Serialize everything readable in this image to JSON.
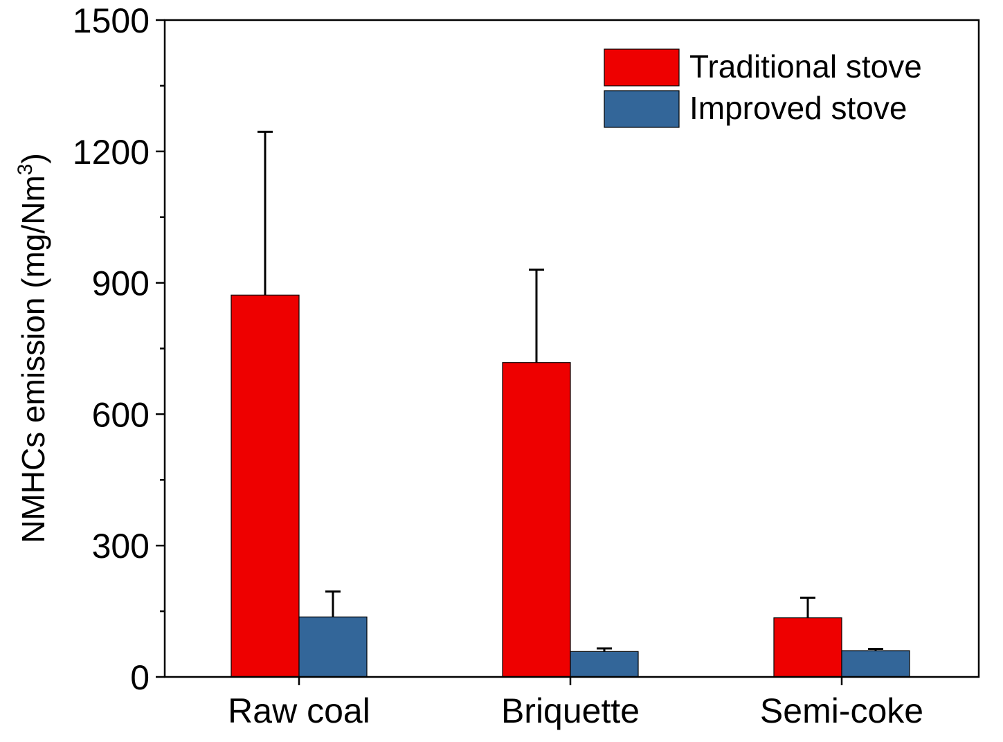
{
  "chart_data": {
    "type": "bar",
    "categories": [
      "Raw coal",
      "Briquette",
      "Semi-coke"
    ],
    "series": [
      {
        "name": "Traditional stove",
        "color": "#ee0000",
        "values": [
          872,
          718,
          135
        ],
        "errors": [
          373,
          212,
          46
        ]
      },
      {
        "name": "Improved stove",
        "color": "#336699",
        "values": [
          137,
          58,
          60
        ],
        "errors": [
          58,
          7,
          4
        ]
      }
    ],
    "ylabel": "NMHCs emission (mg/Nm",
    "ylabel_superscript": "3",
    "ylabel_close": ")",
    "xlabel": "",
    "ylim": [
      0,
      1500
    ],
    "yticks": [
      "0",
      "300",
      "600",
      "900",
      "1200",
      "1500"
    ],
    "legend_position": "top-right",
    "grid": false
  }
}
